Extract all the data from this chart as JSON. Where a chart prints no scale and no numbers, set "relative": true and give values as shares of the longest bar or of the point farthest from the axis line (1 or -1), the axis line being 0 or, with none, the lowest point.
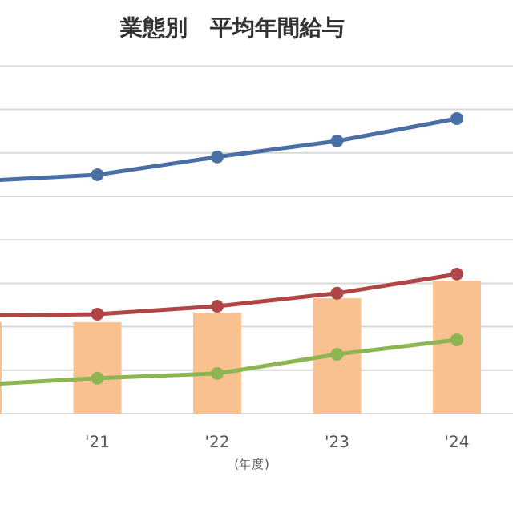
{
  "chart_data": {
    "type": "bar",
    "title": "業態別　平均年間給与",
    "xlabel": "(年度)",
    "categories": [
      null,
      "'21",
      "'22",
      "'23",
      "'24"
    ],
    "relative": true,
    "grid": "y",
    "marker": "circle",
    "series": [
      {
        "color": "#f9c090",
        "values": [
          0.31,
          0.31,
          0.342,
          0.391,
          0.451
        ]
      },
      {
        "type": "line",
        "color": "#4a6fa5",
        "values": [
          0.788,
          0.81,
          0.87,
          0.924,
          1
        ]
      },
      {
        "type": "line",
        "color": "#b04545",
        "values": [
          0.332,
          0.337,
          0.364,
          0.408,
          0.473
        ]
      },
      {
        "type": "line",
        "color": "#8db552",
        "values": [
          0.098,
          0.12,
          0.136,
          0.201,
          0.25
        ]
      }
    ]
  }
}
